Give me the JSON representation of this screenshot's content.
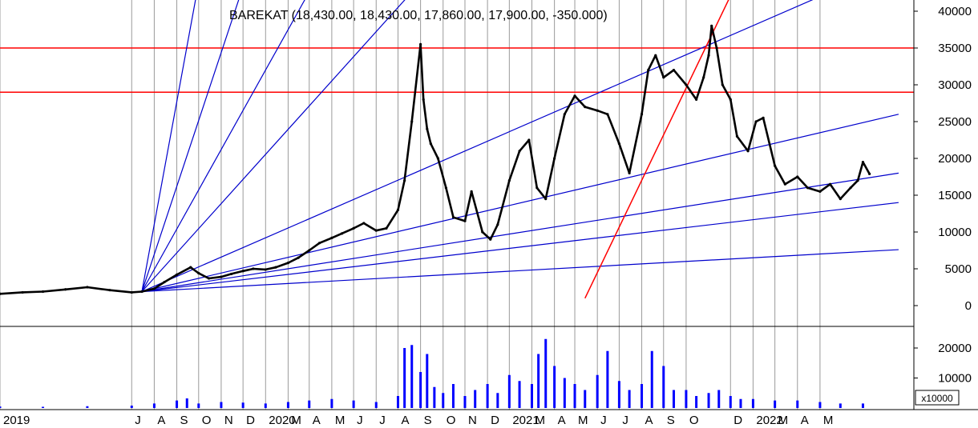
{
  "chart_data": [
    {
      "type": "line",
      "title": "BAREKAT (18,430.00, 18,430.00, 17,860.00, 17,900.00, -350.000)",
      "series": [
        {
          "x": [
            "2019-01-01",
            "2019-02-01",
            "2019-03-01",
            "2019-04-01",
            "2019-05-01",
            "2019-06-01",
            "2019-07-01",
            "2019-07-15",
            "2019-08-01",
            "2019-08-15",
            "2019-09-01",
            "2019-09-20",
            "2019-10-01",
            "2019-10-15",
            "2019-11-01",
            "2019-11-15",
            "2019-12-01",
            "2019-12-15",
            "2020-01-01",
            "2020-01-15",
            "2020-02-01",
            "2020-02-15",
            "2020-03-01",
            "2020-03-15",
            "2020-04-01",
            "2020-04-15",
            "2020-05-01",
            "2020-05-15",
            "2020-06-01",
            "2020-06-15",
            "2020-07-01",
            "2020-07-10",
            "2020-07-20",
            "2020-08-01",
            "2020-08-05",
            "2020-08-10",
            "2020-08-15",
            "2020-08-25",
            "2020-09-05",
            "2020-09-15",
            "2020-10-01",
            "2020-10-10",
            "2020-10-25",
            "2020-11-05",
            "2020-11-15",
            "2020-12-01",
            "2020-12-15",
            "2020-12-28",
            "2021-01-08",
            "2021-01-20",
            "2021-02-01",
            "2021-02-15",
            "2021-03-01",
            "2021-03-15",
            "2021-04-01",
            "2021-04-15",
            "2021-05-01",
            "2021-05-15",
            "2021-06-01",
            "2021-06-10",
            "2021-06-20",
            "2021-07-01",
            "2021-07-15",
            "2021-08-01",
            "2021-08-15",
            "2021-08-25",
            "2021-09-01",
            "2021-09-05",
            "2021-09-12",
            "2021-09-20",
            "2021-10-01",
            "2021-10-10",
            "2021-10-25",
            "2021-11-05",
            "2021-11-15",
            "2021-12-01",
            "2021-12-15",
            "2022-01-01",
            "2022-01-15",
            "2022-02-01",
            "2022-02-15",
            "2022-03-01",
            "2022-03-15",
            "2022-03-25",
            "2022-04-01",
            "2022-04-10"
          ],
          "y": [
            1600,
            1800,
            1900,
            2200,
            2500,
            2100,
            1800,
            1900,
            2300,
            3200,
            4200,
            5200,
            4400,
            3700,
            3900,
            4300,
            4700,
            5000,
            4900,
            5200,
            5800,
            6500,
            7500,
            8500,
            9200,
            9800,
            10500,
            11200,
            10200,
            10500,
            13000,
            17000,
            25000,
            35500,
            28000,
            24000,
            22000,
            20000,
            16000,
            12000,
            11500,
            15500,
            10000,
            9000,
            11000,
            17000,
            21000,
            22500,
            16000,
            14500,
            20000,
            26000,
            28500,
            27000,
            26500,
            26000,
            22000,
            18000,
            26000,
            32000,
            34000,
            31000,
            32000,
            30000,
            28000,
            31000,
            34000,
            38000,
            35000,
            30000,
            28000,
            23000,
            21000,
            25000,
            25500,
            19000,
            16500,
            17500,
            16000,
            15500,
            16500,
            14500,
            16000,
            17000,
            19500,
            17900
          ]
        }
      ],
      "ylim": [
        0,
        41000
      ],
      "y_ticks": [
        0,
        5000,
        10000,
        15000,
        20000,
        25000,
        30000,
        35000,
        40000
      ],
      "y_tick_labels": [
        "0",
        "5000",
        "10000",
        "15000",
        "20000",
        "25000",
        "30000",
        "35000",
        "40000"
      ],
      "horizontal_lines": [
        {
          "y": 35000,
          "color": "#ff0000"
        },
        {
          "y": 29000,
          "color": "#ff0000"
        }
      ],
      "fan_lines": {
        "origin": {
          "x": "2019-07-15",
          "y": 1900
        },
        "color": "#0000cc",
        "ends": [
          {
            "x": "2019-10-05",
            "y": 46000
          },
          {
            "x": "2019-12-10",
            "y": 46000
          },
          {
            "x": "2020-03-20",
            "y": 46000
          },
          {
            "x": "2020-08-20",
            "y": 46000
          },
          {
            "x": "2022-05-05",
            "y": 46000
          },
          {
            "x": "2022-05-20",
            "y": 26000
          },
          {
            "x": "2022-05-20",
            "y": 18000
          },
          {
            "x": "2022-05-20",
            "y": 14000
          },
          {
            "x": "2022-05-20",
            "y": 7600
          }
        ]
      },
      "trend_lines": [
        {
          "x1": "2021-03-15",
          "y1": 1000,
          "x2": "2021-10-20",
          "y2": 46000,
          "color": "#ff0000"
        }
      ],
      "grid": true,
      "color": "#000000"
    },
    {
      "type": "bar",
      "series": [
        {
          "x": [
            "2019-01-01",
            "2019-03-01",
            "2019-05-01",
            "2019-07-01",
            "2019-08-01",
            "2019-09-01",
            "2019-09-15",
            "2019-10-01",
            "2019-11-01",
            "2019-12-01",
            "2020-01-01",
            "2020-02-01",
            "2020-03-01",
            "2020-04-01",
            "2020-05-01",
            "2020-06-01",
            "2020-07-01",
            "2020-07-10",
            "2020-07-20",
            "2020-08-01",
            "2020-08-10",
            "2020-08-20",
            "2020-09-01",
            "2020-09-15",
            "2020-10-01",
            "2020-10-15",
            "2020-11-01",
            "2020-11-15",
            "2020-12-01",
            "2020-12-15",
            "2021-01-01",
            "2021-01-10",
            "2021-01-20",
            "2021-02-01",
            "2021-02-15",
            "2021-03-01",
            "2021-03-15",
            "2021-04-01",
            "2021-04-15",
            "2021-05-01",
            "2021-05-15",
            "2021-06-01",
            "2021-06-15",
            "2021-07-01",
            "2021-07-15",
            "2021-08-01",
            "2021-08-15",
            "2021-09-01",
            "2021-09-15",
            "2021-10-01",
            "2021-10-15",
            "2021-11-01",
            "2021-12-01",
            "2022-01-01",
            "2022-02-01",
            "2022-03-01",
            "2022-04-01"
          ],
          "y": [
            500,
            400,
            600,
            800,
            1500,
            2500,
            3200,
            1500,
            2000,
            1800,
            1500,
            2000,
            2500,
            3000,
            2500,
            2000,
            4000,
            20000,
            21000,
            12000,
            18000,
            7000,
            5000,
            8000,
            4000,
            6000,
            8000,
            5000,
            11000,
            9000,
            8000,
            18000,
            23000,
            14000,
            10000,
            8000,
            6000,
            11000,
            19000,
            9000,
            6000,
            8000,
            19000,
            14000,
            6000,
            6000,
            4000,
            5000,
            6000,
            4000,
            3000,
            3000,
            2500,
            2500,
            2000,
            1500,
            1500
          ]
        }
      ],
      "ylim": [
        0,
        25000
      ],
      "y_ticks": [
        10000,
        20000
      ],
      "y_tick_labels": [
        "10000",
        "20000"
      ],
      "multiplier_label": "x10000",
      "color": "#0000ff"
    }
  ],
  "x_axis": {
    "min": "2019-01-01",
    "max": "2022-06-10",
    "ticks": [
      {
        "date": "2019-01-01",
        "label": "2019"
      },
      {
        "date": "2019-07-01",
        "label": "J"
      },
      {
        "date": "2019-08-01",
        "label": "A"
      },
      {
        "date": "2019-09-01",
        "label": "S"
      },
      {
        "date": "2019-10-01",
        "label": "O"
      },
      {
        "date": "2019-11-01",
        "label": "N"
      },
      {
        "date": "2019-12-01",
        "label": "D"
      },
      {
        "date": "2020-01-01",
        "label": "2020"
      },
      {
        "date": "2020-02-01",
        "label": "M"
      },
      {
        "date": "2020-03-01",
        "label": "A"
      },
      {
        "date": "2020-04-01",
        "label": "M"
      },
      {
        "date": "2020-05-01",
        "label": "J"
      },
      {
        "date": "2020-06-01",
        "label": "J"
      },
      {
        "date": "2020-07-01",
        "label": "A"
      },
      {
        "date": "2020-08-01",
        "label": "S"
      },
      {
        "date": "2020-09-01",
        "label": "O"
      },
      {
        "date": "2020-10-01",
        "label": "N"
      },
      {
        "date": "2020-11-01",
        "label": "D"
      },
      {
        "date": "2020-12-01",
        "label": "2021"
      },
      {
        "date": "2021-01-01",
        "label": "M"
      },
      {
        "date": "2021-02-01",
        "label": "A"
      },
      {
        "date": "2021-03-01",
        "label": "M"
      },
      {
        "date": "2021-04-01",
        "label": "J"
      },
      {
        "date": "2021-05-01",
        "label": "J"
      },
      {
        "date": "2021-06-01",
        "label": "A"
      },
      {
        "date": "2021-07-01",
        "label": "S"
      },
      {
        "date": "2021-08-01",
        "label": "O"
      },
      {
        "date": "2021-10-01",
        "label": "D"
      },
      {
        "date": "2021-11-01",
        "label": "2022"
      },
      {
        "date": "2021-12-01",
        "label": "M"
      },
      {
        "date": "2022-01-01",
        "label": "A"
      },
      {
        "date": "2022-02-01",
        "label": "M"
      }
    ]
  }
}
